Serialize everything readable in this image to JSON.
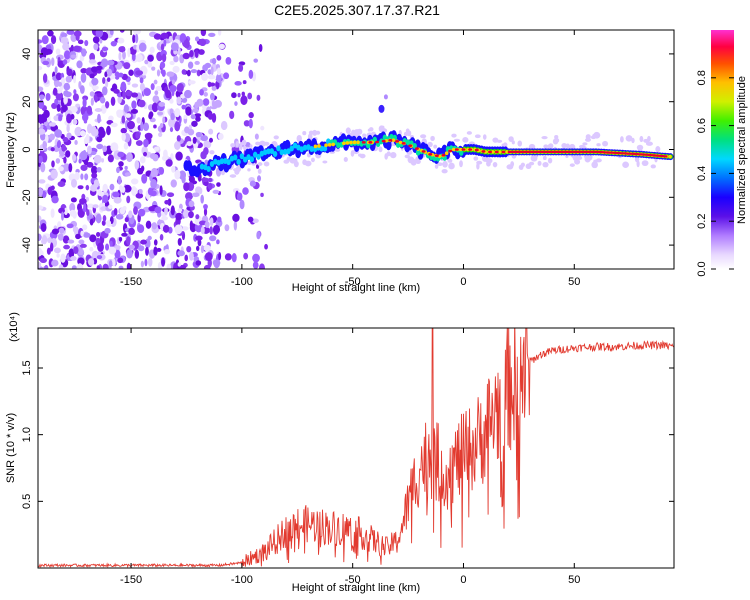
{
  "title": "C2E5.2025.307.17.37.R21",
  "colors": {
    "snr_line": "#e23a2f",
    "colormap": [
      "#ffffff",
      "#f4ecff",
      "#d9c2ff",
      "#a874ff",
      "#6b1fe6",
      "#2a00d0",
      "#0020ff",
      "#00a0ff",
      "#00e6d0",
      "#00e040",
      "#b0f000",
      "#ffe000",
      "#ff8800",
      "#ff2000",
      "#e0005a",
      "#ff3cc8"
    ]
  },
  "chart_data": [
    {
      "type": "heatmap",
      "xlabel": "Height of straight line (km)",
      "ylabel": "Frequency (Hz)",
      "xlim": [
        -192,
        95
      ],
      "ylim": [
        -50,
        50
      ],
      "xticks": [
        -150,
        -100,
        -50,
        0,
        50
      ],
      "yticks": [
        -40,
        -20,
        0,
        20,
        40
      ],
      "xtick_labels": [
        "-150",
        "-100",
        "-50",
        "0",
        "50"
      ],
      "ytick_labels": [
        "-40",
        "-20",
        "0",
        "20",
        "40"
      ],
      "colorbar": {
        "label": "Normalized spectral amplitude",
        "range": [
          0,
          1
        ],
        "ticks": [
          0.0,
          0.2,
          0.4,
          0.6,
          0.8
        ],
        "tick_labels": [
          "0.0",
          "0.2",
          "0.4",
          "0.6",
          "0.8"
        ]
      },
      "trace_center": [
        [
          -122,
          -8
        ],
        [
          -110,
          -6
        ],
        [
          -100,
          -4
        ],
        [
          -90,
          -2
        ],
        [
          -80,
          0
        ],
        [
          -70,
          1
        ],
        [
          -60,
          2
        ],
        [
          -50,
          3
        ],
        [
          -40,
          3
        ],
        [
          -32,
          4
        ],
        [
          -25,
          2
        ],
        [
          -20,
          0
        ],
        [
          -15,
          -2
        ],
        [
          -10,
          -3
        ],
        [
          -5,
          0
        ],
        [
          0,
          0
        ],
        [
          5,
          0
        ],
        [
          10,
          -1
        ],
        [
          20,
          -1
        ],
        [
          40,
          -1
        ],
        [
          60,
          -1
        ],
        [
          80,
          -2
        ],
        [
          93,
          -3
        ]
      ]
    },
    {
      "type": "line",
      "xlabel": "Height of straight line (km)",
      "ylabel": "SNR (10 * v/v)",
      "multiplier_label": "(x10⁴)",
      "xlim": [
        -192,
        95
      ],
      "ylim": [
        0,
        1.8
      ],
      "xticks": [
        -150,
        -100,
        -50,
        0,
        50
      ],
      "yticks": [
        0.5,
        1.0,
        1.5
      ],
      "xtick_labels": [
        "-150",
        "-100",
        "-50",
        "0",
        "50"
      ],
      "ytick_labels": [
        "0.5",
        "1.0",
        "1.5"
      ],
      "series": [
        {
          "name": "SNR",
          "envelope": [
            [
              -192,
              0.02
            ],
            [
              -110,
              0.02
            ],
            [
              -100,
              0.04
            ],
            [
              -95,
              0.08
            ],
            [
              -90,
              0.12
            ],
            [
              -85,
              0.2
            ],
            [
              -80,
              0.28
            ],
            [
              -75,
              0.32
            ],
            [
              -70,
              0.33
            ],
            [
              -65,
              0.32
            ],
            [
              -60,
              0.3
            ],
            [
              -55,
              0.3
            ],
            [
              -50,
              0.28
            ],
            [
              -45,
              0.25
            ],
            [
              -40,
              0.2
            ],
            [
              -35,
              0.15
            ],
            [
              -30,
              0.2
            ],
            [
              -27,
              0.35
            ],
            [
              -24,
              0.55
            ],
            [
              -20,
              0.75
            ],
            [
              -16,
              0.85
            ],
            [
              -12,
              0.8
            ],
            [
              -8,
              0.7
            ],
            [
              -4,
              0.78
            ],
            [
              0,
              0.85
            ],
            [
              4,
              0.9
            ],
            [
              8,
              0.98
            ],
            [
              12,
              1.1
            ],
            [
              16,
              1.22
            ],
            [
              20,
              1.35
            ],
            [
              25,
              1.45
            ],
            [
              30,
              1.55
            ],
            [
              35,
              1.6
            ],
            [
              40,
              1.63
            ],
            [
              50,
              1.65
            ],
            [
              60,
              1.66
            ],
            [
              70,
              1.66
            ],
            [
              80,
              1.67
            ],
            [
              90,
              1.67
            ],
            [
              95,
              1.66
            ]
          ],
          "peak": [
            -14,
            1.8
          ]
        }
      ]
    }
  ]
}
